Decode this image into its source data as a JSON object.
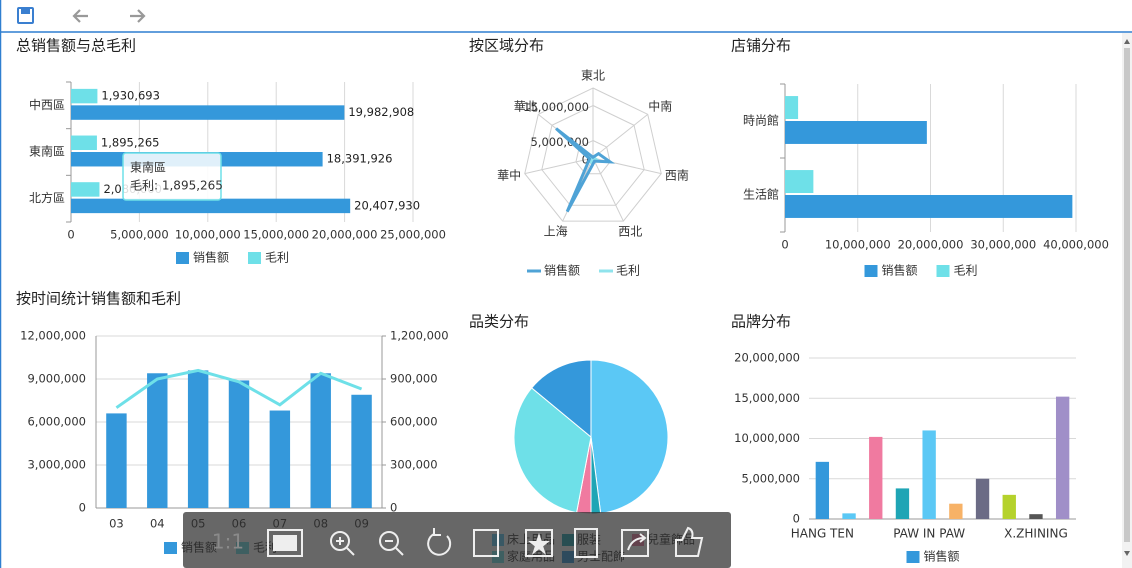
{
  "toolbar": {
    "zoom_label": "1:1"
  },
  "tooltip": {
    "title": "東南區",
    "text": "毛利: 1,895,265"
  },
  "chart_data": [
    {
      "type": "hbar",
      "title": "总销售额与总毛利",
      "categories": [
        "中西區",
        "東南區",
        "北方區"
      ],
      "series": [
        {
          "name": "销售额",
          "color": "#3498db",
          "values": [
            19982908,
            18391926,
            20407930
          ],
          "value_labels": [
            "19,982,908",
            "18,391,926",
            "20,407,930"
          ]
        },
        {
          "name": "毛利",
          "color": "#6ee0e8",
          "values": [
            1930693,
            1895265,
            2080000
          ],
          "value_labels": [
            "1,930,693",
            "1,895,265",
            "2,080,000"
          ]
        }
      ],
      "xlim": [
        0,
        25000000
      ],
      "xticks": [
        0,
        {
          "value": 5000000,
          "label": "5,000,000"
        },
        {
          "value": 10000000,
          "label": "10,000,000"
        },
        {
          "value": 15000000,
          "label": "15,000,000"
        },
        {
          "value": 20000000,
          "label": "20,000,000"
        },
        {
          "value": 25000000,
          "label": "25,000,000"
        }
      ],
      "grid": true
    },
    {
      "type": "radar",
      "title": "按区域分布",
      "categories": [
        "東北",
        "中南",
        "西南",
        "西北",
        "上海",
        "華中",
        "華北"
      ],
      "series": [
        {
          "name": "销售额",
          "color": "#4fa3d6",
          "values": [
            200000,
            2000000,
            5000000,
            1000000,
            17000000,
            1000000,
            13500000
          ]
        },
        {
          "name": "毛利",
          "color": "#8fe3ec",
          "values": [
            20000,
            200000,
            500000,
            100000,
            1700000,
            100000,
            1350000
          ]
        }
      ],
      "rlim": [
        0,
        20000000
      ],
      "rticks": [
        0,
        {
          "value": 5000000,
          "label": "5,000,000"
        },
        {
          "value": 15000000,
          "label": "15,000,000"
        }
      ]
    },
    {
      "type": "hbar",
      "title": "店铺分布",
      "categories": [
        "時尚館",
        "生活館"
      ],
      "series": [
        {
          "name": "销售额",
          "color": "#3498db",
          "values": [
            19500000,
            39500000
          ]
        },
        {
          "name": "毛利",
          "color": "#6ee0e8",
          "values": [
            1800000,
            3900000
          ]
        }
      ],
      "xlim": [
        0,
        40000000
      ],
      "xticks": [
        0,
        {
          "value": 10000000,
          "label": "10,000,000"
        },
        {
          "value": 20000000,
          "label": "20,000,000"
        },
        {
          "value": 30000000,
          "label": "30,000,000"
        },
        {
          "value": 40000000,
          "label": "40,000,000"
        }
      ],
      "grid": true
    },
    {
      "type": "combo",
      "title": "按时间统计销售额和毛利",
      "categories": [
        "03",
        "04",
        "05",
        "06",
        "07",
        "08",
        "09"
      ],
      "series": [
        {
          "name": "销售额",
          "type": "bar",
          "color": "#3498db",
          "values": [
            6600000,
            9400000,
            9600000,
            8900000,
            6800000,
            9400000,
            7900000
          ]
        },
        {
          "name": "毛利",
          "type": "line",
          "axis": "y2",
          "color": "#6ee0e8",
          "values": [
            700000,
            900000,
            960000,
            880000,
            720000,
            940000,
            830000
          ]
        }
      ],
      "ylim": [
        0,
        12000000
      ],
      "yticks": [
        0,
        {
          "value": 3000000,
          "label": "3,000,000"
        },
        {
          "value": 6000000,
          "label": "6,000,000"
        },
        {
          "value": 9000000,
          "label": "9,000,000"
        },
        {
          "value": 12000000,
          "label": "12,000,000"
        }
      ],
      "y2lim": [
        0,
        1200000
      ],
      "y2ticks": [
        0,
        {
          "value": 300000,
          "label": "300,000"
        },
        {
          "value": 600000,
          "label": "600,000"
        },
        {
          "value": 900000,
          "label": "900,000"
        },
        {
          "value": 1200000,
          "label": "1,200,000"
        }
      ],
      "grid": true
    },
    {
      "type": "pie",
      "title": "品类分布",
      "categories": [
        "床上用品",
        "服装",
        "兒童飾品",
        "家庭用品",
        "男士配飾"
      ],
      "values": [
        48,
        2,
        3,
        33,
        14
      ],
      "colors": [
        "#5bc8f5",
        "#1fa5b5",
        "#f07aa0",
        "#6ee0e8",
        "#3498db"
      ]
    },
    {
      "type": "bar",
      "title": "品牌分布",
      "categories": [
        "HANG TEN",
        null,
        null,
        null,
        "PAW IN PAW",
        null,
        null,
        null,
        "X.ZHINING",
        null
      ],
      "series": [
        {
          "name": "销售额",
          "color": "#3498db",
          "colors": [
            "#3498db",
            "#5bc8f5",
            "#f07aa0",
            "#1fa5b5",
            "#5bc8f5",
            "#f7b267",
            "#6b6b85",
            "#b5d22c",
            "#555555",
            "#a08fc8"
          ],
          "values": [
            7100000,
            700000,
            10200000,
            3800000,
            11000000,
            1900000,
            5000000,
            3000000,
            600000,
            15200000
          ]
        }
      ],
      "ylim": [
        0,
        20000000
      ],
      "yticks": [
        0,
        {
          "value": 5000000,
          "label": "5,000,000"
        },
        {
          "value": 10000000,
          "label": "10,000,000"
        },
        {
          "value": 15000000,
          "label": "15,000,000"
        },
        {
          "value": 20000000,
          "label": "20,000,000"
        }
      ],
      "grid": true
    }
  ]
}
